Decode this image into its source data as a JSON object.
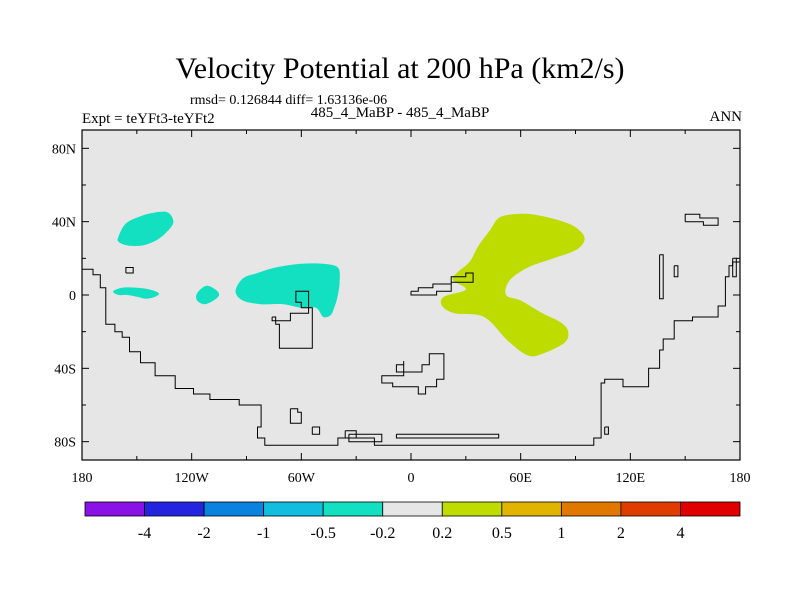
{
  "page": {
    "title": "Velocity Potential at 200 hPa (km2/s)",
    "stats": "rmsd= 0.126844 diff= 1.63136e-06",
    "expt": "Expt = teYFt3-teYFt2",
    "subtitle": "485_4_MaBP - 485_4_MaBP",
    "season": "ANN"
  },
  "chart_data": {
    "type": "heatmap",
    "title": "Velocity Potential at 200 hPa (km2/s)",
    "units": "km2/s",
    "xlim": [
      -180,
      180
    ],
    "ylim": [
      -90,
      90
    ],
    "xticks": [
      {
        "value": -180,
        "label": "180"
      },
      {
        "value": -120,
        "label": "120W"
      },
      {
        "value": -60,
        "label": "60W"
      },
      {
        "value": 0,
        "label": "0"
      },
      {
        "value": 60,
        "label": "60E"
      },
      {
        "value": 120,
        "label": "120E"
      },
      {
        "value": 180,
        "label": "180"
      }
    ],
    "yticks": [
      {
        "value": 80,
        "label": "80N"
      },
      {
        "value": 40,
        "label": "40N"
      },
      {
        "value": 0,
        "label": "0"
      },
      {
        "value": -40,
        "label": "40S"
      },
      {
        "value": -80,
        "label": "80S"
      }
    ],
    "colorbar": {
      "levels": [
        -4,
        -2,
        -1,
        -0.5,
        -0.2,
        0.2,
        0.5,
        1,
        2,
        4
      ],
      "labels": [
        "-4",
        "-2",
        "-1",
        "-0.5",
        "-0.2",
        "0.2",
        "0.5",
        "1",
        "2",
        "4"
      ],
      "colors": [
        "#8a12e6",
        "#2424e0",
        "#0a82e0",
        "#12bede",
        "#12e0c0",
        "#e6e6e6",
        "#bedc00",
        "#e0b400",
        "#e07800",
        "#e03c00",
        "#e00000"
      ]
    },
    "background_color": "#e6e6e6",
    "regions": [
      {
        "name": "region-neg-northpacific",
        "category": "-0.5 to -0.2",
        "color": "#12e0c0",
        "points": [
          [
            -160,
            32
          ],
          [
            -156,
            39
          ],
          [
            -148,
            43
          ],
          [
            -140,
            45
          ],
          [
            -133,
            45
          ],
          [
            -130,
            40
          ],
          [
            -133,
            35
          ],
          [
            -139,
            30
          ],
          [
            -147,
            27
          ],
          [
            -155,
            27
          ],
          [
            -160,
            29
          ]
        ]
      },
      {
        "name": "region-neg-eqpacific-west",
        "category": "-0.5 to -0.2",
        "color": "#12e0c0",
        "points": [
          [
            -163,
            2
          ],
          [
            -158,
            4
          ],
          [
            -150,
            4
          ],
          [
            -143,
            3
          ],
          [
            -138,
            1
          ],
          [
            -140,
            -1
          ],
          [
            -145,
            -2
          ],
          [
            -150,
            -1
          ],
          [
            -155,
            0
          ],
          [
            -160,
            0
          ]
        ]
      },
      {
        "name": "region-neg-eqpacific-east",
        "category": "-0.5 to -0.2",
        "color": "#12e0c0",
        "points": [
          [
            -117,
            1
          ],
          [
            -112,
            5
          ],
          [
            -107,
            3
          ],
          [
            -105,
            0
          ],
          [
            -108,
            -3
          ],
          [
            -113,
            -5
          ],
          [
            -117,
            -3
          ]
        ]
      },
      {
        "name": "region-neg-americas",
        "category": "-0.5 to -0.2",
        "color": "#12e0c0",
        "points": [
          [
            -96,
            2
          ],
          [
            -92,
            9
          ],
          [
            -84,
            12
          ],
          [
            -74,
            15
          ],
          [
            -60,
            17
          ],
          [
            -48,
            17
          ],
          [
            -40,
            15
          ],
          [
            -39,
            8
          ],
          [
            -40,
            0
          ],
          [
            -42,
            -7
          ],
          [
            -44,
            -11
          ],
          [
            -48,
            -12
          ],
          [
            -52,
            -7
          ],
          [
            -60,
            -7
          ],
          [
            -70,
            -5
          ],
          [
            -82,
            -5
          ],
          [
            -92,
            -3
          ]
        ]
      },
      {
        "name": "region-pos-indianocean",
        "category": "0.2 to 0.5",
        "color": "#bedc00",
        "points": [
          [
            48,
            42
          ],
          [
            43,
            35
          ],
          [
            37,
            27
          ],
          [
            32,
            18
          ],
          [
            25,
            12
          ],
          [
            23,
            8
          ],
          [
            30,
            3
          ],
          [
            18,
            -1
          ],
          [
            17,
            -6
          ],
          [
            24,
            -10
          ],
          [
            40,
            -12
          ],
          [
            53,
            -25
          ],
          [
            64,
            -33
          ],
          [
            72,
            -32
          ],
          [
            84,
            -26
          ],
          [
            86,
            -20
          ],
          [
            82,
            -15
          ],
          [
            72,
            -10
          ],
          [
            60,
            -3
          ],
          [
            52,
            0
          ],
          [
            54,
            8
          ],
          [
            64,
            15
          ],
          [
            78,
            20
          ],
          [
            91,
            25
          ],
          [
            95,
            31
          ],
          [
            90,
            37
          ],
          [
            80,
            41
          ],
          [
            66,
            44
          ],
          [
            56,
            44
          ]
        ]
      }
    ],
    "coastlines": [
      [
        [
          -180,
          14
        ],
        [
          -174,
          14
        ],
        [
          -174,
          11
        ],
        [
          -170,
          11
        ],
        [
          -170,
          4
        ],
        [
          -167,
          4
        ],
        [
          -167,
          -16
        ],
        [
          -162,
          -16
        ],
        [
          -162,
          -20
        ],
        [
          -158,
          -20
        ],
        [
          -158,
          -23
        ],
        [
          -154,
          -23
        ],
        [
          -154,
          -31
        ],
        [
          -148,
          -31
        ],
        [
          -148,
          -37
        ],
        [
          -140,
          -37
        ],
        [
          -140,
          -44
        ],
        [
          -129,
          -44
        ],
        [
          -129,
          -51
        ],
        [
          -119,
          -51
        ],
        [
          -119,
          -54
        ],
        [
          -110,
          -54
        ],
        [
          -110,
          -57
        ],
        [
          -94,
          -57
        ],
        [
          -94,
          -60
        ],
        [
          -82,
          -60
        ],
        [
          -82,
          -72
        ],
        [
          -84,
          -72
        ],
        [
          -84,
          -78
        ],
        [
          -80,
          -78
        ],
        [
          -80,
          -82
        ],
        [
          -40,
          -82
        ],
        [
          -40,
          -78
        ],
        [
          -20,
          -78
        ],
        [
          -20,
          -82
        ],
        [
          100,
          -82
        ],
        [
          100,
          -78
        ],
        [
          104,
          -78
        ],
        [
          104,
          -48
        ],
        [
          106,
          -48
        ],
        [
          106,
          -46
        ],
        [
          116,
          -46
        ],
        [
          116,
          -50
        ],
        [
          130,
          -50
        ],
        [
          130,
          -40
        ],
        [
          136,
          -40
        ],
        [
          136,
          -30
        ],
        [
          138,
          -30
        ],
        [
          138,
          -24
        ],
        [
          144,
          -24
        ],
        [
          144,
          -14
        ],
        [
          154,
          -14
        ],
        [
          154,
          -12
        ],
        [
          168,
          -12
        ],
        [
          168,
          -6
        ],
        [
          172,
          -6
        ],
        [
          172,
          10
        ],
        [
          174,
          10
        ],
        [
          174,
          16
        ],
        [
          176,
          16
        ],
        [
          176,
          18
        ],
        [
          180,
          18
        ]
      ],
      [
        [
          -156,
          12
        ],
        [
          -152,
          12
        ],
        [
          -152,
          15
        ],
        [
          -156,
          15
        ],
        [
          -156,
          12
        ]
      ],
      [
        [
          -76,
          -12
        ],
        [
          -74,
          -12
        ],
        [
          -74,
          -16
        ],
        [
          -72,
          -16
        ],
        [
          -72,
          -29
        ],
        [
          -54,
          -29
        ],
        [
          -54,
          -7
        ],
        [
          -60,
          -7
        ],
        [
          -60,
          -4
        ],
        [
          -63,
          -4
        ],
        [
          -63,
          2
        ],
        [
          -56,
          2
        ],
        [
          -56,
          -10
        ],
        [
          -66,
          -10
        ],
        [
          -66,
          -14
        ],
        [
          -76,
          -14
        ],
        [
          -76,
          -12
        ]
      ],
      [
        [
          0,
          2
        ],
        [
          4,
          2
        ],
        [
          4,
          4
        ],
        [
          12,
          4
        ],
        [
          12,
          6
        ],
        [
          22,
          6
        ],
        [
          22,
          10
        ],
        [
          30,
          10
        ],
        [
          30,
          12
        ],
        [
          34,
          12
        ],
        [
          34,
          7
        ],
        [
          22,
          7
        ],
        [
          22,
          2
        ],
        [
          14,
          2
        ],
        [
          14,
          0
        ],
        [
          0,
          0
        ],
        [
          0,
          2
        ]
      ],
      [
        [
          -66,
          -62
        ],
        [
          -62,
          -62
        ],
        [
          -62,
          -64
        ],
        [
          -60,
          -64
        ],
        [
          -60,
          -70
        ],
        [
          -66,
          -70
        ],
        [
          -66,
          -62
        ]
      ],
      [
        [
          -54,
          -72
        ],
        [
          -50,
          -72
        ],
        [
          -50,
          -76
        ],
        [
          -54,
          -76
        ],
        [
          -54,
          -72
        ]
      ],
      [
        [
          -36,
          -74
        ],
        [
          -30,
          -74
        ],
        [
          -30,
          -78
        ],
        [
          -36,
          -78
        ],
        [
          -36,
          -74
        ]
      ],
      [
        [
          -4,
          -36
        ],
        [
          -4,
          -38
        ],
        [
          -8,
          -38
        ],
        [
          -8,
          -42
        ],
        [
          6,
          -42
        ],
        [
          6,
          -38
        ],
        [
          10,
          -38
        ],
        [
          10,
          -32
        ],
        [
          18,
          -32
        ],
        [
          18,
          -46
        ],
        [
          14,
          -46
        ],
        [
          14,
          -50
        ],
        [
          8,
          -50
        ],
        [
          8,
          -54
        ],
        [
          4,
          -54
        ],
        [
          4,
          -50
        ],
        [
          -10,
          -50
        ],
        [
          -10,
          -48
        ],
        [
          -16,
          -48
        ],
        [
          -16,
          -44
        ],
        [
          -4,
          -44
        ],
        [
          -4,
          -36
        ]
      ],
      [
        [
          -34,
          -76
        ],
        [
          -16,
          -76
        ],
        [
          -16,
          -80
        ],
        [
          -34,
          -80
        ],
        [
          -34,
          -76
        ]
      ],
      [
        [
          -8,
          -76
        ],
        [
          48,
          -76
        ],
        [
          48,
          -78
        ],
        [
          -8,
          -78
        ],
        [
          -8,
          -76
        ]
      ],
      [
        [
          150,
          40
        ],
        [
          150,
          44
        ],
        [
          158,
          44
        ],
        [
          158,
          42
        ],
        [
          168,
          42
        ],
        [
          168,
          38
        ],
        [
          160,
          38
        ],
        [
          160,
          40
        ],
        [
          150,
          40
        ]
      ],
      [
        [
          136,
          22
        ],
        [
          136,
          -2
        ],
        [
          138,
          -2
        ],
        [
          138,
          22
        ],
        [
          136,
          22
        ]
      ],
      [
        [
          144,
          16
        ],
        [
          146,
          16
        ],
        [
          146,
          10
        ],
        [
          144,
          10
        ],
        [
          144,
          16
        ]
      ],
      [
        [
          176,
          20
        ],
        [
          176,
          10
        ],
        [
          178,
          10
        ],
        [
          178,
          20
        ],
        [
          176,
          20
        ]
      ],
      [
        [
          106,
          -72
        ],
        [
          108,
          -72
        ],
        [
          108,
          -76
        ],
        [
          106,
          -76
        ],
        [
          106,
          -72
        ]
      ]
    ]
  }
}
